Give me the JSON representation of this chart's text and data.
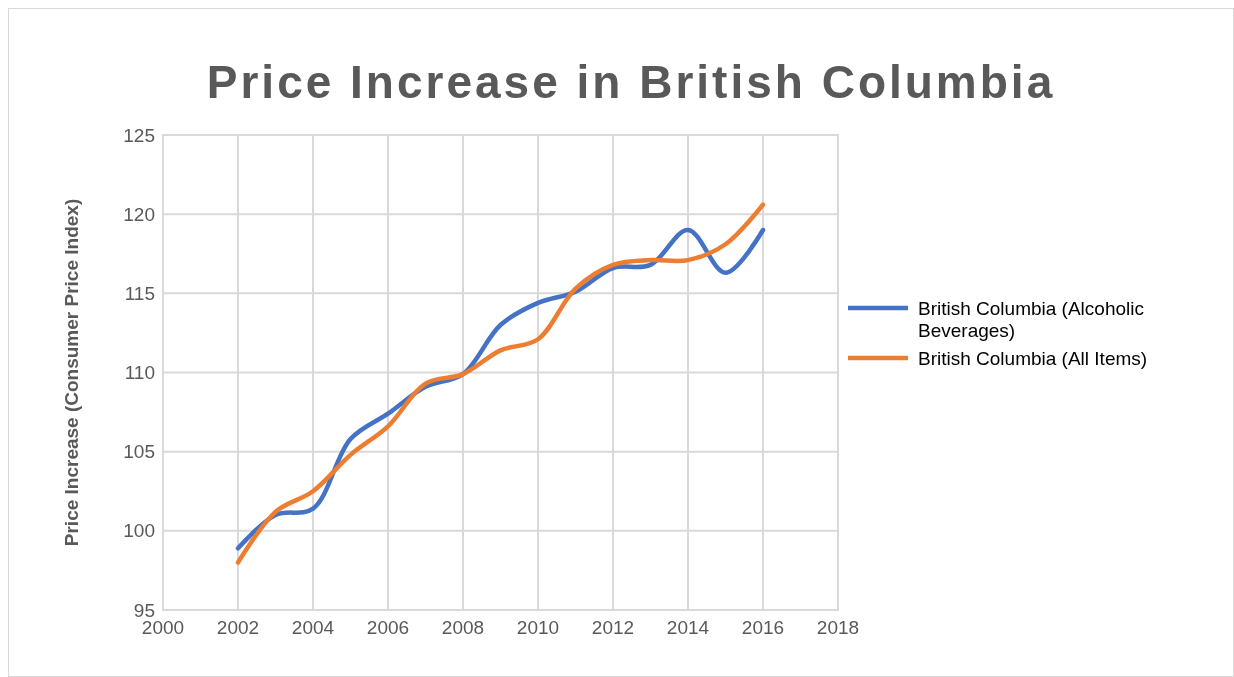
{
  "chart_data": {
    "type": "line",
    "title": "Price Increase in British Columbia",
    "ylabel": "Price Increase (Consumer Price Index)",
    "x": [
      2002,
      2003,
      2004,
      2005,
      2006,
      2007,
      2008,
      2009,
      2010,
      2011,
      2012,
      2013,
      2014,
      2015,
      2016
    ],
    "series": [
      {
        "name": "British Columbia (Alcoholic Beverages)",
        "color": "#4472c4",
        "values": [
          98.9,
          101.0,
          101.4,
          105.8,
          107.4,
          109.1,
          109.9,
          113.0,
          114.4,
          115.1,
          116.6,
          116.8,
          119.0,
          116.3,
          119.0
        ]
      },
      {
        "name": "British Columbia (All Items)",
        "color": "#ed7d31",
        "values": [
          98.0,
          101.2,
          102.5,
          104.8,
          106.6,
          109.3,
          109.9,
          111.4,
          112.1,
          115.3,
          116.8,
          117.1,
          117.1,
          118.1,
          120.6
        ]
      }
    ],
    "xlim": [
      2000,
      2018
    ],
    "xticks": [
      2000,
      2002,
      2004,
      2006,
      2008,
      2010,
      2012,
      2014,
      2016,
      2018
    ],
    "ylim": [
      95,
      125
    ],
    "yticks": [
      95,
      100,
      105,
      110,
      115,
      120,
      125
    ],
    "grid": true,
    "legend": "right",
    "marker": "none",
    "line_style": "solid"
  }
}
